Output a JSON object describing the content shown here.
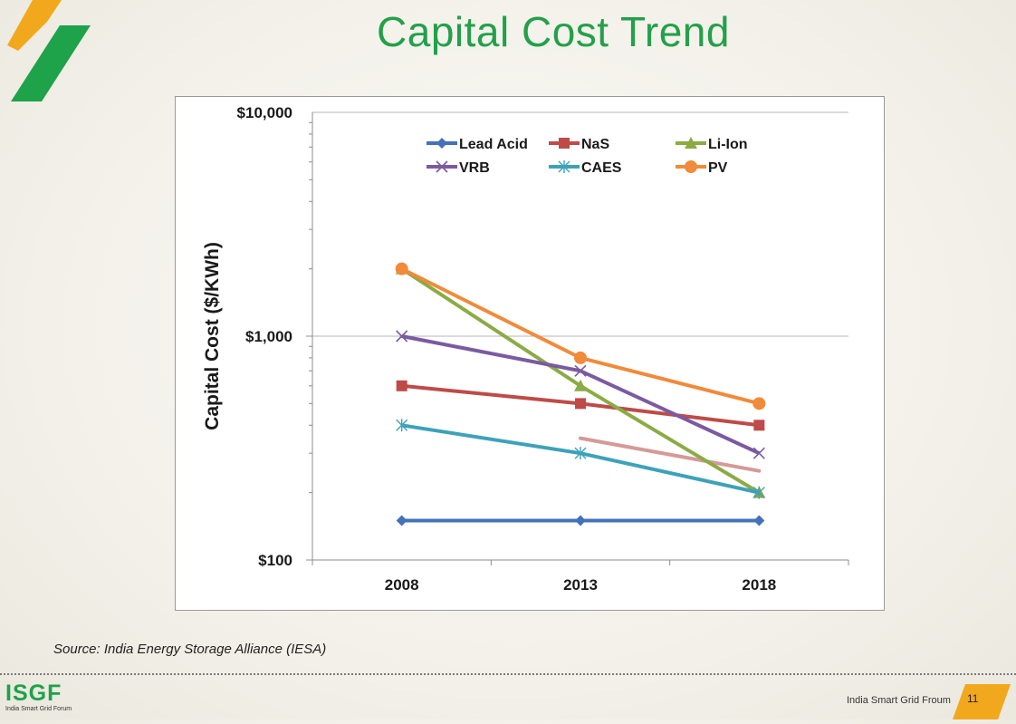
{
  "slide": {
    "title": "Capital Cost Trend",
    "source": "Source: India Energy Storage Alliance (IESA)",
    "footer_logo_abbr": "ISGF",
    "footer_logo_full": "India Smart Grid Forum",
    "footer_org": "India Smart Grid Froum",
    "page_number": "11"
  },
  "colors": {
    "title_green": "#23a04a",
    "brand_orange": "#f2a81d",
    "brand_green": "#1ea24a"
  },
  "chart_data": {
    "type": "line",
    "title": "",
    "ylabel": "Capital Cost ($/KWh)",
    "xlabel": "",
    "y_scale": "log",
    "ylim": [
      100,
      10000
    ],
    "y_ticks": [
      100,
      1000,
      10000
    ],
    "y_tick_labels": [
      "$100",
      "$1,000",
      "$10,000"
    ],
    "categories": [
      "2008",
      "2013",
      "2018"
    ],
    "legend_position": "top",
    "grid": "horizontal major gridlines",
    "series": [
      {
        "name": "Lead Acid",
        "color": "#4472b8",
        "marker": "diamond",
        "values": [
          150,
          150,
          150
        ]
      },
      {
        "name": "NaS",
        "color": "#be4b48",
        "marker": "square",
        "values": [
          600,
          500,
          400
        ]
      },
      {
        "name": "Li-Ion",
        "color": "#8bab44",
        "marker": "triangle",
        "values": [
          2000,
          600,
          200
        ]
      },
      {
        "name": "VRB",
        "color": "#7b5aa0",
        "marker": "x",
        "values": [
          1000,
          700,
          300
        ]
      },
      {
        "name": "CAES",
        "color": "#3da2b9",
        "marker": "star",
        "values": [
          400,
          300,
          200
        ]
      },
      {
        "name": "PV",
        "color": "#f18a3a",
        "marker": "circle",
        "values": [
          2000,
          800,
          500
        ]
      }
    ],
    "unlabeled_series": [
      {
        "color": "#d49a98",
        "values": [
          null,
          350,
          250
        ]
      }
    ]
  }
}
